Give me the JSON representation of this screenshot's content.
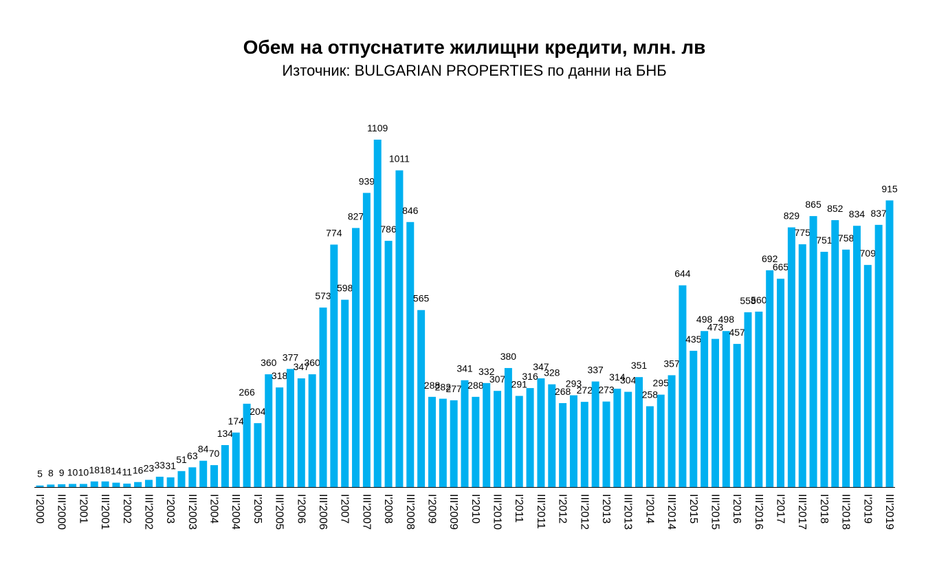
{
  "chart_data": {
    "type": "bar",
    "title": "Обем на отпуснатите жилищни кредити, млн. лв",
    "subtitle": "Източник: BULGARIAN PROPERTIES по данни на БНБ",
    "color": "#00b0f0",
    "categories": [
      "I'2000",
      null,
      "III'2000",
      null,
      "I'2001",
      null,
      "III'2001",
      null,
      "I'2002",
      null,
      "III'2002",
      null,
      "I'2003",
      null,
      "III'2003",
      null,
      "I'2004",
      null,
      "III'2004",
      null,
      "I'2005",
      null,
      "III'2005",
      null,
      "I'2006",
      null,
      "III'2006",
      null,
      "I'2007",
      null,
      "III'2007",
      null,
      "I'2008",
      null,
      "III'2008",
      null,
      "I'2009",
      null,
      "III'2009",
      null,
      "I'2010",
      null,
      "III'2010",
      null,
      "I'2011",
      null,
      "III'2011",
      null,
      "I'2012",
      null,
      "III'2012",
      null,
      "I'2013",
      null,
      "III'2013",
      null,
      "I'2014",
      null,
      "III'2014",
      null,
      "I'2015",
      null,
      "III'2015",
      null,
      "I'2016",
      null,
      "III'2016",
      null,
      "I'2017",
      null,
      "III'2017",
      null,
      "I'2018",
      null,
      "III'2018",
      null,
      "I'2019",
      null,
      "III'2019"
    ],
    "values": [
      5,
      8,
      9,
      10,
      10,
      18,
      18,
      14,
      11,
      16,
      23,
      33,
      31,
      51,
      63,
      84,
      70,
      134,
      174,
      266,
      204,
      360,
      318,
      377,
      347,
      360,
      573,
      774,
      598,
      827,
      939,
      1109,
      786,
      1011,
      846,
      565,
      288,
      282,
      277,
      341,
      288,
      332,
      307,
      380,
      291,
      316,
      347,
      328,
      268,
      293,
      272,
      337,
      273,
      314,
      304,
      351,
      258,
      295,
      357,
      644,
      435,
      498,
      473,
      498,
      457,
      558,
      560,
      692,
      665,
      829,
      775,
      865,
      751,
      852,
      758,
      834,
      709,
      837,
      915
    ]
  }
}
